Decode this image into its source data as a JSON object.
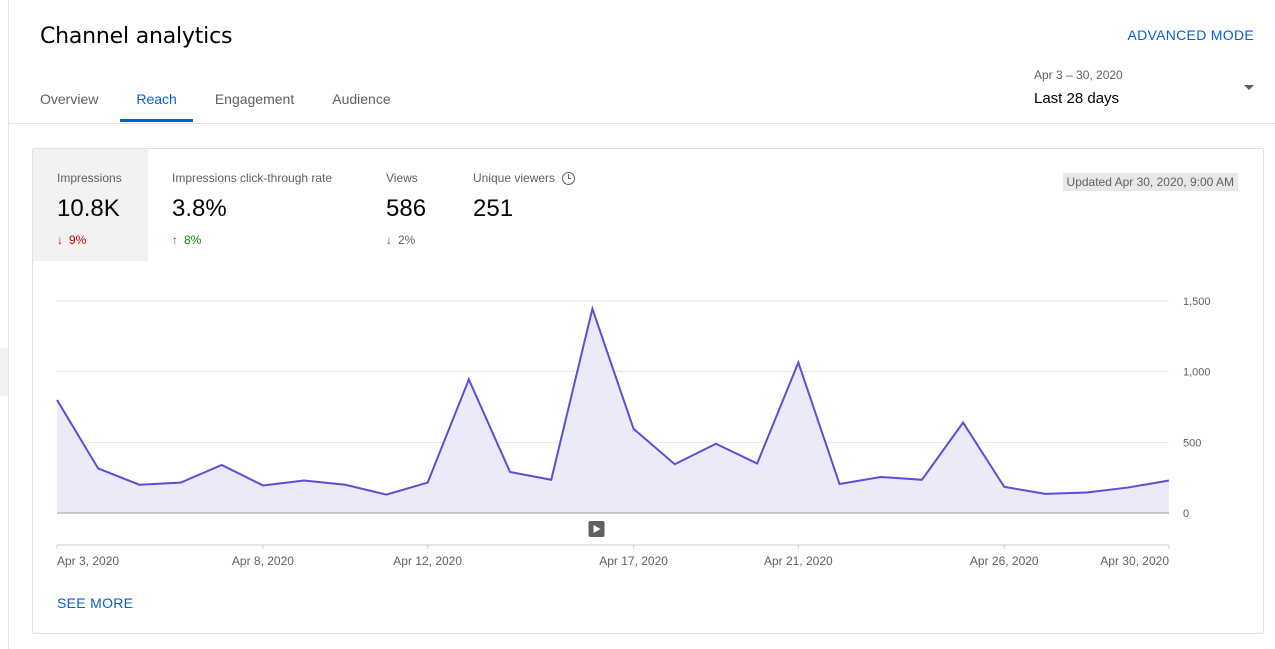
{
  "header": {
    "title": "Channel analytics",
    "advanced_mode": "ADVANCED MODE"
  },
  "tabs": [
    {
      "label": "Overview"
    },
    {
      "label": "Reach"
    },
    {
      "label": "Engagement"
    },
    {
      "label": "Audience"
    }
  ],
  "active_tab": "Reach",
  "date_picker": {
    "range": "Apr 3 – 30, 2020",
    "label": "Last 28 days"
  },
  "metrics": [
    {
      "label": "Impressions",
      "value": "10.8K",
      "change": "9%",
      "direction": "down",
      "selected": true
    },
    {
      "label": "Impressions click-through rate",
      "value": "3.8%",
      "change": "8%",
      "direction": "up"
    },
    {
      "label": "Views",
      "value": "586",
      "change": "2%",
      "direction": "neutral"
    },
    {
      "label": "Unique viewers",
      "value": "251",
      "icon": "clock-icon"
    }
  ],
  "updated": "Updated Apr 30, 2020, 9:00 AM",
  "see_more": "SEE MORE",
  "colors": {
    "accent": "#065fd4",
    "line": "#5b4fd6",
    "area": "#ebeaf8",
    "down": "#cc0000",
    "up": "#0a8a0a"
  },
  "chart_data": {
    "type": "area",
    "x": [
      "Apr 3, 2020",
      "Apr 4, 2020",
      "Apr 5, 2020",
      "Apr 6, 2020",
      "Apr 7, 2020",
      "Apr 8, 2020",
      "Apr 9, 2020",
      "Apr 10, 2020",
      "Apr 11, 2020",
      "Apr 12, 2020",
      "Apr 13, 2020",
      "Apr 14, 2020",
      "Apr 15, 2020",
      "Apr 16, 2020",
      "Apr 17, 2020",
      "Apr 18, 2020",
      "Apr 19, 2020",
      "Apr 20, 2020",
      "Apr 21, 2020",
      "Apr 22, 2020",
      "Apr 23, 2020",
      "Apr 24, 2020",
      "Apr 25, 2020",
      "Apr 26, 2020",
      "Apr 27, 2020",
      "Apr 28, 2020",
      "Apr 29, 2020",
      "Apr 30, 2020"
    ],
    "series": [
      {
        "values": [
          800,
          315,
          200,
          215,
          340,
          195,
          230,
          200,
          130,
          215,
          945,
          290,
          235,
          1445,
          595,
          345,
          490,
          350,
          1065,
          205,
          255,
          235,
          640,
          185,
          135,
          145,
          180,
          230
        ]
      }
    ],
    "x_tick_labels": [
      "Apr 3, 2020",
      "Apr 8, 2020",
      "Apr 12, 2020",
      "Apr 17, 2020",
      "Apr 21, 2020",
      "Apr 26, 2020",
      "Apr 30, 2020"
    ],
    "x_tick_indices": [
      0,
      5,
      9,
      14,
      18,
      23,
      27
    ],
    "y_ticks": [
      0,
      500,
      1000,
      1500
    ],
    "y_tick_labels": [
      "0",
      "500",
      "1,000",
      "1,500"
    ],
    "ylim": [
      0,
      1500
    ],
    "grid": true,
    "y_axis_side": "right"
  }
}
